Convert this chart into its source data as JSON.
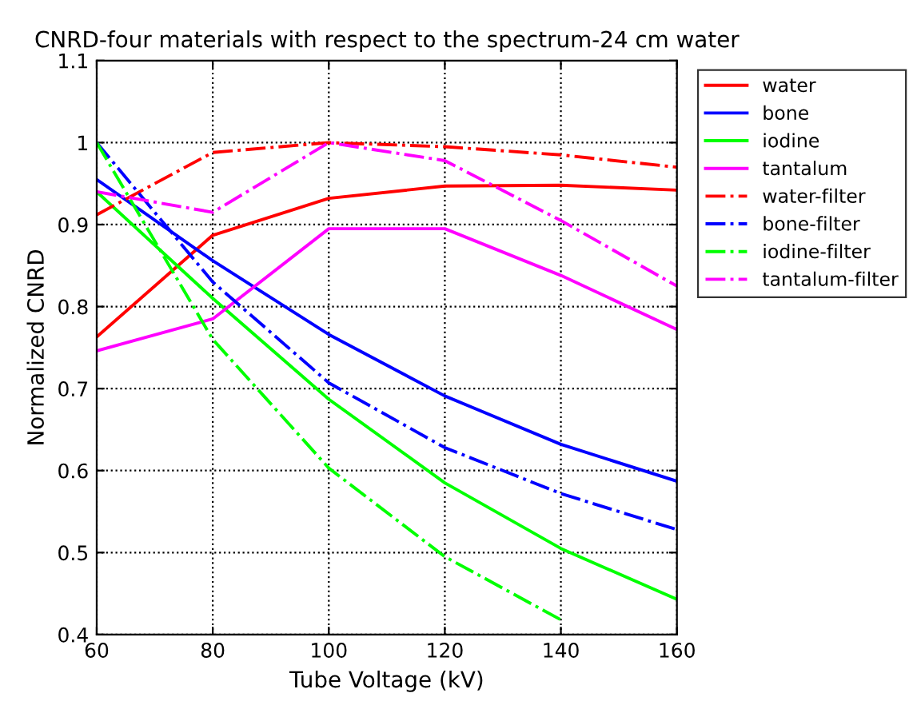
{
  "chart_data": {
    "type": "line",
    "title": "CNRD-four materials with respect to the spectrum-24 cm water",
    "xlabel": "Tube Voltage (kV)",
    "ylabel": "Normalized CNRD",
    "x": [
      60,
      80,
      100,
      120,
      140,
      160
    ],
    "series": [
      {
        "name": "water",
        "color": "#ff0000",
        "line_style": "solid",
        "values": [
          0.763,
          0.887,
          0.932,
          0.947,
          0.948,
          0.942
        ]
      },
      {
        "name": "bone",
        "color": "#0000ff",
        "line_style": "solid",
        "values": [
          0.955,
          0.856,
          0.766,
          0.691,
          0.632,
          0.587
        ]
      },
      {
        "name": "iodine",
        "color": "#00ff00",
        "line_style": "solid",
        "values": [
          0.94,
          0.81,
          0.687,
          0.585,
          0.505,
          0.443
        ]
      },
      {
        "name": "tantalum",
        "color": "#ff00ff",
        "line_style": "solid",
        "values": [
          0.746,
          0.785,
          0.895,
          0.895,
          0.838,
          0.772
        ]
      },
      {
        "name": "water-filter",
        "color": "#ff0000",
        "line_style": "dashdot",
        "values": [
          0.912,
          0.988,
          1.0,
          0.995,
          0.985,
          0.97
        ]
      },
      {
        "name": "bone-filter",
        "color": "#0000ff",
        "line_style": "dashdot",
        "values": [
          1.0,
          0.83,
          0.707,
          0.628,
          0.572,
          0.528
        ]
      },
      {
        "name": "iodine-filter",
        "color": "#00ff00",
        "line_style": "dashdot",
        "values": [
          1.0,
          0.76,
          0.603,
          0.495,
          0.418,
          null
        ]
      },
      {
        "name": "tantalum-filter",
        "color": "#ff00ff",
        "line_style": "dashdot",
        "values": [
          0.94,
          0.915,
          1.0,
          0.978,
          0.905,
          0.825
        ]
      }
    ],
    "xlim": [
      60,
      160
    ],
    "xticks": [
      60,
      80,
      100,
      120,
      140,
      160
    ],
    "ylim": [
      0.4,
      1.1
    ],
    "yticks": [
      0.4,
      0.5,
      0.6,
      0.7,
      0.8,
      0.9,
      1,
      1.1
    ],
    "grid": true,
    "legend": "right",
    "marker": "none"
  }
}
